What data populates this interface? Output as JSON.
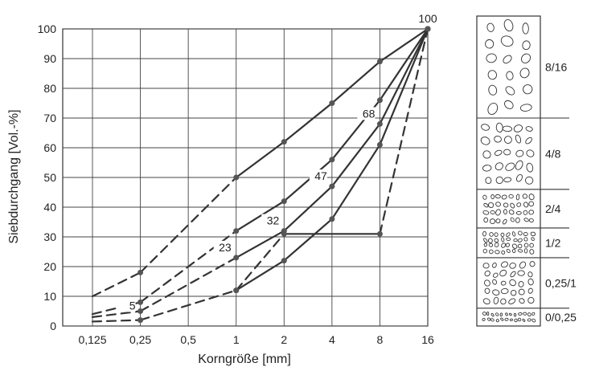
{
  "chart_data": {
    "type": "line",
    "xlabel": "Korngröße [mm]",
    "ylabel": "Siebdurchgang [Vol.-%]",
    "x_ticks": [
      "0,125",
      "0,25",
      "0,5",
      "1",
      "2",
      "4",
      "8",
      "16"
    ],
    "y_ticks": [
      "0",
      "10",
      "20",
      "30",
      "40",
      "50",
      "60",
      "70",
      "80",
      "90",
      "100"
    ],
    "ylim": [
      0,
      100
    ],
    "x_scale": "log2",
    "grid": true,
    "series": [
      {
        "points": [
          [
            0.125,
            10
          ],
          [
            0.25,
            18
          ],
          [
            1,
            50
          ],
          [
            2,
            62
          ],
          [
            4,
            75
          ],
          [
            8,
            89
          ],
          [
            16,
            100
          ]
        ],
        "dashed_until": 1
      },
      {
        "points": [
          [
            0.125,
            4
          ],
          [
            0.25,
            8
          ],
          [
            1,
            32
          ],
          [
            2,
            42
          ],
          [
            4,
            56
          ],
          [
            8,
            76
          ],
          [
            16,
            100
          ]
        ],
        "dashed_until": 1
      },
      {
        "points": [
          [
            0.125,
            3
          ],
          [
            0.25,
            5
          ],
          [
            1,
            23
          ],
          [
            2,
            32
          ],
          [
            4,
            47
          ],
          [
            8,
            68
          ],
          [
            16,
            100
          ]
        ],
        "dashed_until": 1
      },
      {
        "points": [
          [
            0.125,
            1.5
          ],
          [
            0.25,
            2
          ],
          [
            1,
            12
          ],
          [
            2,
            22
          ],
          [
            4,
            36
          ],
          [
            8,
            61
          ],
          [
            16,
            100
          ]
        ],
        "dashed_until": 1
      },
      {
        "points": [
          [
            1,
            12
          ],
          [
            2,
            31
          ],
          [
            8,
            31
          ],
          [
            16,
            100
          ]
        ],
        "dashed_segments": [
          0,
          2
        ]
      }
    ],
    "point_labels": [
      {
        "x": 16,
        "y": 100,
        "text": "100"
      },
      {
        "x": 8,
        "y": 68,
        "text": "68"
      },
      {
        "x": 4,
        "y": 47,
        "text": "47"
      },
      {
        "x": 2,
        "y": 32,
        "text": "32"
      },
      {
        "x": 1,
        "y": 23,
        "text": "23"
      },
      {
        "x": 0.25,
        "y": 5,
        "text": "5"
      }
    ],
    "fractions": [
      {
        "label": "8/16",
        "from": 70,
        "to": 100
      },
      {
        "label": "4/8",
        "from": 46,
        "to": 70
      },
      {
        "label": "2/4",
        "from": 33,
        "to": 46
      },
      {
        "label": "1/2",
        "from": 23,
        "to": 33
      },
      {
        "label": "0,25/1",
        "from": 6,
        "to": 23
      },
      {
        "label": "0/0,25",
        "from": 0,
        "to": 6
      }
    ]
  }
}
